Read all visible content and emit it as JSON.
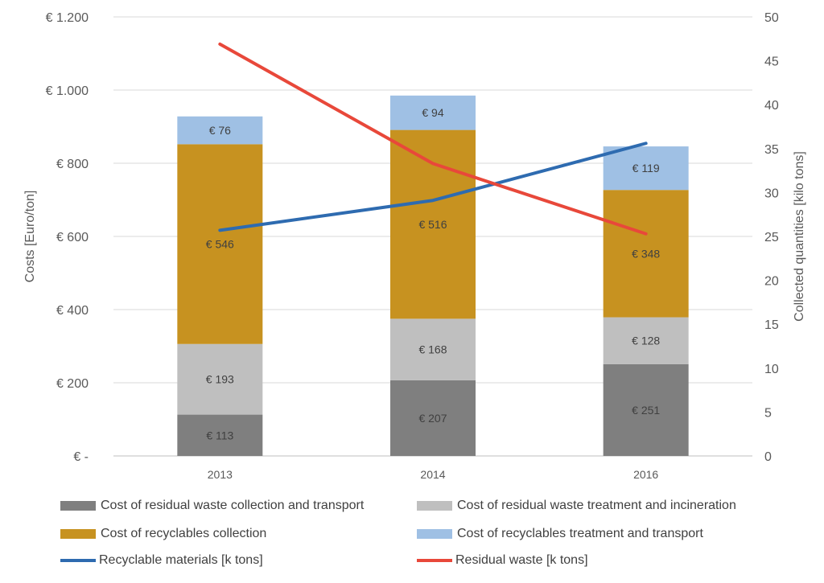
{
  "chart_data": {
    "type": "bar",
    "stacked": true,
    "categories": [
      "2013",
      "2014",
      "2016"
    ],
    "series": [
      {
        "name": "Cost of residual waste collection and transport",
        "values": [
          113,
          207,
          251
        ],
        "labels": [
          "€ 113",
          "€ 207",
          "€ 251"
        ],
        "color": "#7f7f7f"
      },
      {
        "name": "Cost of residual waste treatment and incineration",
        "values": [
          193,
          168,
          128
        ],
        "labels": [
          "€ 193",
          "€ 168",
          "€ 128"
        ],
        "color": "#bfbfbf"
      },
      {
        "name": "Cost of recyclables collection",
        "values": [
          546,
          516,
          348
        ],
        "labels": [
          "€ 546",
          "€ 516",
          "€ 348"
        ],
        "color": "#c79220"
      },
      {
        "name": "Cost of recyclables treatment and transport",
        "values": [
          76,
          94,
          119
        ],
        "labels": [
          "€ 76",
          "€ 94",
          "€ 119"
        ],
        "color": "#9fc0e4"
      }
    ],
    "line_series": [
      {
        "name": "Recyclable materials [k tons]",
        "values": [
          25.7,
          29.1,
          35.6
        ],
        "color": "#2e6bb0",
        "axis": "right"
      },
      {
        "name": "Residual waste [k tons]",
        "values": [
          46.9,
          33.3,
          25.3
        ],
        "color": "#e8483a",
        "axis": "right"
      }
    ],
    "ylabel": "Costs [Euro/ton]",
    "ylabel_right": "Collected quantities [kilo tons]",
    "ylim": [
      0,
      1200
    ],
    "ylim_right": [
      0,
      50
    ],
    "yticks": [
      "€ -",
      "€ 200",
      "€ 400",
      "€ 600",
      "€ 800",
      "€ 1.000",
      "€ 1.200"
    ],
    "yticks_right": [
      "0",
      "5",
      "10",
      "15",
      "20",
      "25",
      "30",
      "35",
      "40",
      "45",
      "50"
    ],
    "grid": true,
    "legend_position": "bottom"
  }
}
